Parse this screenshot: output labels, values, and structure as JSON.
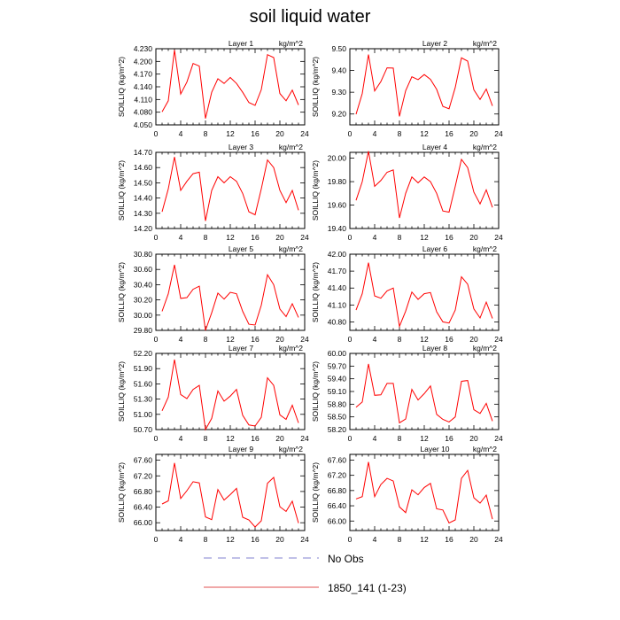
{
  "figure": {
    "title": "soil liquid water",
    "legend": [
      {
        "label": "No Obs",
        "style": "dashed",
        "color": "#8080d0"
      },
      {
        "label": "1850_141 (1-23)",
        "style": "solid",
        "color": "#e05050"
      }
    ]
  },
  "chart_data": [
    {
      "type": "line",
      "title": "Layer 1",
      "units": "kg/m^2",
      "ylabel": "SOILLIQ  (kg/m^2)",
      "xlim": [
        0,
        24
      ],
      "xticks": [
        "0",
        "4",
        "8",
        "12",
        "16",
        "20",
        "24"
      ],
      "ylim": [
        4.05,
        4.23
      ],
      "yticks": [
        "4.050",
        "4.080",
        "4.110",
        "4.140",
        "4.170",
        "4.200",
        "4.230"
      ],
      "series": [
        {
          "color": "#ff0000",
          "x": [
            1,
            2,
            3,
            4,
            5,
            6,
            7,
            8,
            9,
            10,
            11,
            12,
            13,
            14,
            15,
            16,
            17,
            18,
            19,
            20,
            21,
            22,
            23
          ],
          "y": [
            4.081,
            4.107,
            4.227,
            4.123,
            4.151,
            4.195,
            4.189,
            4.065,
            4.127,
            4.159,
            4.148,
            4.162,
            4.148,
            4.127,
            4.103,
            4.096,
            4.133,
            4.216,
            4.209,
            4.124,
            4.107,
            4.132,
            4.097
          ]
        }
      ]
    },
    {
      "type": "line",
      "title": "Layer 2",
      "units": "kg/m^2",
      "ylabel": "SOILLIQ  (kg/m^2)",
      "xlim": [
        0,
        24
      ],
      "xticks": [
        "0",
        "4",
        "8",
        "12",
        "16",
        "20",
        "24"
      ],
      "ylim": [
        9.15,
        9.5
      ],
      "yticks": [
        "9.20",
        "9.30",
        "9.40",
        "9.50"
      ],
      "series": [
        {
          "color": "#ff0000",
          "x": [
            1,
            2,
            3,
            4,
            5,
            6,
            7,
            8,
            9,
            10,
            11,
            12,
            13,
            14,
            15,
            16,
            17,
            18,
            19,
            20,
            21,
            22,
            23
          ],
          "y": [
            9.199,
            9.294,
            9.473,
            9.306,
            9.349,
            9.412,
            9.411,
            9.189,
            9.307,
            9.371,
            9.358,
            9.381,
            9.359,
            9.313,
            9.235,
            9.224,
            9.322,
            9.458,
            9.443,
            9.311,
            9.267,
            9.315,
            9.237
          ]
        }
      ]
    },
    {
      "type": "line",
      "title": "Layer 3",
      "units": "kg/m^2",
      "ylabel": "SOILLIQ  (kg/m^2)",
      "xlim": [
        0,
        24
      ],
      "xticks": [
        "0",
        "4",
        "8",
        "12",
        "16",
        "20",
        "24"
      ],
      "ylim": [
        14.2,
        14.7
      ],
      "yticks": [
        "14.20",
        "14.30",
        "14.40",
        "14.50",
        "14.60",
        "14.70"
      ],
      "series": [
        {
          "color": "#ff0000",
          "x": [
            1,
            2,
            3,
            4,
            5,
            6,
            7,
            8,
            9,
            10,
            11,
            12,
            13,
            14,
            15,
            16,
            17,
            18,
            19,
            20,
            21,
            22,
            23
          ],
          "y": [
            14.31,
            14.46,
            14.67,
            14.45,
            14.51,
            14.56,
            14.57,
            14.25,
            14.45,
            14.54,
            14.5,
            14.54,
            14.51,
            14.43,
            14.31,
            14.29,
            14.46,
            14.65,
            14.6,
            14.45,
            14.37,
            14.45,
            14.32
          ]
        }
      ]
    },
    {
      "type": "line",
      "title": "Layer 4",
      "units": "kg/m^2",
      "ylabel": "SOILLIQ  (kg/m^2)",
      "xlim": [
        0,
        24
      ],
      "xticks": [
        "0",
        "4",
        "8",
        "12",
        "16",
        "20",
        "24"
      ],
      "ylim": [
        19.4,
        20.05
      ],
      "yticks": [
        "19.40",
        "19.60",
        "19.80",
        "20.00"
      ],
      "series": [
        {
          "color": "#ff0000",
          "x": [
            1,
            2,
            3,
            4,
            5,
            6,
            7,
            8,
            9,
            10,
            11,
            12,
            13,
            14,
            15,
            16,
            17,
            18,
            19,
            20,
            21,
            22,
            23
          ],
          "y": [
            19.64,
            19.8,
            20.06,
            19.76,
            19.81,
            19.88,
            19.9,
            19.49,
            19.7,
            19.84,
            19.79,
            19.84,
            19.8,
            19.7,
            19.55,
            19.54,
            19.76,
            19.99,
            19.92,
            19.71,
            19.61,
            19.73,
            19.58
          ]
        }
      ]
    },
    {
      "type": "line",
      "title": "Layer 5",
      "units": "kg/m^2",
      "ylabel": "SOILLIQ  (kg/m^2)",
      "xlim": [
        0,
        24
      ],
      "xticks": [
        "0",
        "4",
        "8",
        "12",
        "16",
        "20",
        "24"
      ],
      "ylim": [
        29.8,
        30.8
      ],
      "yticks": [
        "29.80",
        "30.00",
        "30.20",
        "30.40",
        "30.60",
        "30.80"
      ],
      "series": [
        {
          "color": "#ff0000",
          "x": [
            1,
            2,
            3,
            4,
            5,
            6,
            7,
            8,
            9,
            10,
            11,
            12,
            13,
            14,
            15,
            16,
            17,
            18,
            19,
            20,
            21,
            22,
            23
          ],
          "y": [
            30.05,
            30.28,
            30.66,
            30.22,
            30.23,
            30.34,
            30.38,
            29.8,
            30.03,
            30.29,
            30.21,
            30.3,
            30.28,
            30.05,
            29.88,
            29.87,
            30.13,
            30.53,
            30.4,
            30.08,
            29.98,
            30.15,
            29.97
          ]
        }
      ]
    },
    {
      "type": "line",
      "title": "Layer 6",
      "units": "kg/m^2",
      "ylabel": "SOILLIQ  (kg/m^2)",
      "xlim": [
        0,
        24
      ],
      "xticks": [
        "0",
        "4",
        "8",
        "12",
        "16",
        "20",
        "24"
      ],
      "ylim": [
        40.65,
        42.0
      ],
      "yticks": [
        "40.80",
        "41.10",
        "41.40",
        "41.70",
        "42.00"
      ],
      "series": [
        {
          "color": "#ff0000",
          "x": [
            1,
            2,
            3,
            4,
            5,
            6,
            7,
            8,
            9,
            10,
            11,
            12,
            13,
            14,
            15,
            16,
            17,
            18,
            19,
            20,
            21,
            22,
            23
          ],
          "y": [
            41.01,
            41.3,
            41.85,
            41.26,
            41.22,
            41.35,
            41.4,
            40.72,
            40.99,
            41.33,
            41.2,
            41.3,
            41.32,
            40.98,
            40.8,
            40.78,
            41.01,
            41.6,
            41.47,
            41.03,
            40.87,
            41.15,
            40.86
          ]
        }
      ]
    },
    {
      "type": "line",
      "title": "Layer 7",
      "units": "kg/m^2",
      "ylabel": "SOILLIQ  (kg/m^2)",
      "xlim": [
        0,
        24
      ],
      "xticks": [
        "0",
        "4",
        "8",
        "12",
        "16",
        "20",
        "24"
      ],
      "ylim": [
        50.7,
        52.2
      ],
      "yticks": [
        "50.70",
        "51.00",
        "51.30",
        "51.60",
        "51.90",
        "52.20"
      ],
      "series": [
        {
          "color": "#ff0000",
          "x": [
            1,
            2,
            3,
            4,
            5,
            6,
            7,
            8,
            9,
            10,
            11,
            12,
            13,
            14,
            15,
            16,
            17,
            18,
            19,
            20,
            21,
            22,
            23
          ],
          "y": [
            51.07,
            51.34,
            52.08,
            51.39,
            51.31,
            51.49,
            51.57,
            50.7,
            50.92,
            51.46,
            51.26,
            51.36,
            51.49,
            50.98,
            50.79,
            50.77,
            50.94,
            51.72,
            51.57,
            50.99,
            50.9,
            51.18,
            50.83
          ]
        }
      ]
    },
    {
      "type": "line",
      "title": "Layer 8",
      "units": "kg/m^2",
      "ylabel": "SOILLIQ  (kg/m^2)",
      "xlim": [
        0,
        24
      ],
      "xticks": [
        "0",
        "4",
        "8",
        "12",
        "16",
        "20",
        "24"
      ],
      "ylim": [
        58.2,
        60.0
      ],
      "yticks": [
        "58.20",
        "58.50",
        "58.80",
        "59.10",
        "59.40",
        "59.70",
        "60.00"
      ],
      "series": [
        {
          "color": "#ff0000",
          "x": [
            1,
            2,
            3,
            4,
            5,
            6,
            7,
            8,
            9,
            10,
            11,
            12,
            13,
            14,
            15,
            16,
            17,
            18,
            19,
            20,
            21,
            22,
            23
          ],
          "y": [
            58.73,
            58.85,
            59.75,
            59.01,
            59.02,
            59.29,
            59.29,
            58.36,
            58.45,
            59.15,
            58.9,
            59.05,
            59.23,
            58.56,
            58.44,
            58.38,
            58.5,
            59.34,
            59.36,
            58.67,
            58.58,
            58.82,
            58.4
          ]
        }
      ]
    },
    {
      "type": "line",
      "title": "Layer 9",
      "units": "kg/m^2",
      "ylabel": "SOILLIQ  (kg/m^2)",
      "xlim": [
        0,
        24
      ],
      "xticks": [
        "0",
        "4",
        "8",
        "12",
        "16",
        "20",
        "24"
      ],
      "ylim": [
        65.8,
        67.75
      ],
      "yticks": [
        "66.00",
        "66.40",
        "66.80",
        "67.20",
        "67.60"
      ],
      "series": [
        {
          "color": "#ff0000",
          "x": [
            1,
            2,
            3,
            4,
            5,
            6,
            7,
            8,
            9,
            10,
            11,
            12,
            13,
            14,
            15,
            16,
            17,
            18,
            19,
            20,
            21,
            22,
            23
          ],
          "y": [
            66.48,
            66.56,
            67.53,
            66.62,
            66.82,
            67.05,
            67.02,
            66.15,
            66.08,
            66.85,
            66.58,
            66.72,
            66.88,
            66.14,
            66.07,
            65.89,
            66.05,
            67.01,
            67.16,
            66.41,
            66.29,
            66.55,
            65.99
          ]
        }
      ]
    },
    {
      "type": "line",
      "title": "Layer 10",
      "units": "kg/m^2",
      "ylabel": "SOILLIQ  (kg/m^2)",
      "xlim": [
        0,
        24
      ],
      "xticks": [
        "0",
        "4",
        "8",
        "12",
        "16",
        "20",
        "24"
      ],
      "ylim": [
        65.75,
        67.75
      ],
      "yticks": [
        "66.00",
        "66.40",
        "66.80",
        "67.20",
        "67.60"
      ],
      "series": [
        {
          "color": "#ff0000",
          "x": [
            1,
            2,
            3,
            4,
            5,
            6,
            7,
            8,
            9,
            10,
            11,
            12,
            13,
            14,
            15,
            16,
            17,
            18,
            19,
            20,
            21,
            22,
            23
          ],
          "y": [
            66.58,
            66.64,
            67.55,
            66.64,
            66.96,
            67.12,
            67.05,
            66.37,
            66.22,
            66.82,
            66.69,
            66.88,
            66.99,
            66.32,
            66.29,
            65.95,
            66.03,
            67.12,
            67.33,
            66.61,
            66.47,
            66.68,
            66.05
          ]
        }
      ]
    }
  ]
}
